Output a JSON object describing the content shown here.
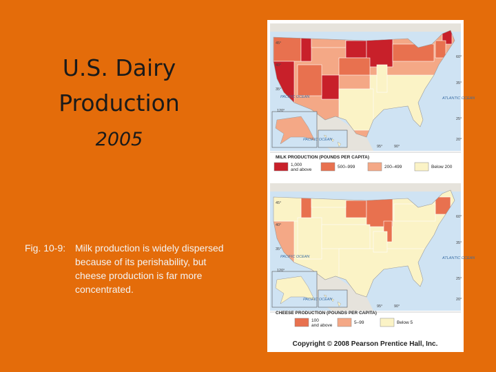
{
  "slide": {
    "title_lines": [
      "U.S. Dairy",
      "Production"
    ],
    "year": "2005",
    "caption": {
      "label": "Fig. 10-9:",
      "lines": [
        "Milk production is widely dispersed",
        "because of its perishability, but",
        "cheese production is far more",
        "concentrated."
      ]
    }
  },
  "maps": [
    {
      "ocean_labels": [
        "PACIFIC OCEAN",
        "ATLANTIC OCEAN",
        "PACIFIC OCEAN"
      ],
      "degree_labels": [
        "45°",
        "40°",
        "35°",
        "120°",
        "95°",
        "90°",
        "60°",
        "35°",
        "25°",
        "20°"
      ],
      "legend_title": "MILK PRODUCTION (POUNDS PER CAPITA)",
      "legend": [
        {
          "color": "#c8202a",
          "label_lines": [
            "1,000",
            "and above"
          ]
        },
        {
          "color": "#e8714f",
          "label_lines": [
            "500–999"
          ]
        },
        {
          "color": "#f4a886",
          "label_lines": [
            "200–499"
          ]
        },
        {
          "color": "#fbf3c6",
          "label_lines": [
            "Below 200"
          ]
        }
      ]
    },
    {
      "ocean_labels": [
        "PACIFIC OCEAN",
        "ATLANTIC OCEAN",
        "PACIFIC OCEAN"
      ],
      "degree_labels": [
        "45°",
        "40°",
        "35°",
        "120°",
        "95°",
        "90°",
        "60°",
        "35°",
        "25°",
        "20°"
      ],
      "legend_title": "CHEESE PRODUCTION (POUNDS PER CAPITA)",
      "legend": [
        {
          "color": "#e8714f",
          "label_lines": [
            "100",
            "and above"
          ]
        },
        {
          "color": "#f4a886",
          "label_lines": [
            "5–99"
          ]
        },
        {
          "color": "#fbf3c6",
          "label_lines": [
            "Below 5"
          ]
        }
      ]
    }
  ],
  "copyright": "Copyright © 2008 Pearson Prentice Hall, Inc."
}
